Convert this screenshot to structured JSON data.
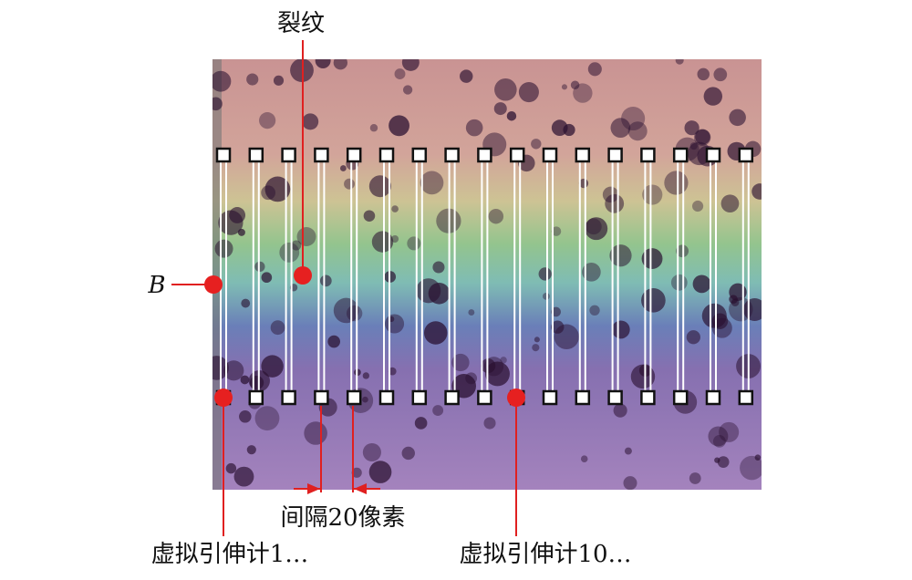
{
  "labels": {
    "crack": "裂纹",
    "boundary": "B",
    "spacing": "间隔20像素",
    "extensometer_1": "虚拟引伸计1…",
    "extensometer_10": "虚拟引伸计10…"
  }
}
